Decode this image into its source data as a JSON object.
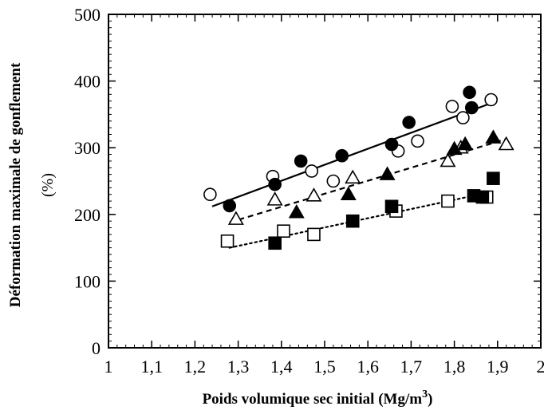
{
  "chart_data": {
    "type": "scatter",
    "title": "",
    "xlabel": "Poids volumique sec initial (Mg/m",
    "xlabel_sup": "3",
    "xlabel_close": ")",
    "ylabel": "Déformation maximale de gonflement",
    "ylabel_unit": "(%)",
    "xlim": [
      1,
      2
    ],
    "ylim": [
      0,
      500
    ],
    "x_ticks": [
      1,
      1.1,
      1.2,
      1.3,
      1.4,
      1.5,
      1.6,
      1.7,
      1.8,
      1.9,
      2
    ],
    "x_tick_labels": [
      "1",
      "1,1",
      "1,2",
      "1,3",
      "1,4",
      "1,5",
      "1,6",
      "1,7",
      "1,8",
      "1,9",
      "2"
    ],
    "y_ticks": [
      0,
      100,
      200,
      300,
      400,
      500
    ],
    "y_tick_labels": [
      "0",
      "100",
      "200",
      "300",
      "400",
      "500"
    ],
    "grid": false,
    "legend": "none",
    "series": [
      {
        "marker": "open-circle",
        "points": [
          [
            1.235,
            230
          ],
          [
            1.38,
            257
          ],
          [
            1.47,
            265
          ],
          [
            1.52,
            250
          ],
          [
            1.67,
            295
          ],
          [
            1.715,
            310
          ],
          [
            1.795,
            362
          ],
          [
            1.82,
            345
          ],
          [
            1.885,
            372
          ]
        ]
      },
      {
        "marker": "filled-circle",
        "points": [
          [
            1.28,
            213
          ],
          [
            1.385,
            245
          ],
          [
            1.445,
            280
          ],
          [
            1.54,
            288
          ],
          [
            1.655,
            305
          ],
          [
            1.695,
            338
          ],
          [
            1.835,
            383
          ],
          [
            1.84,
            360
          ]
        ]
      },
      {
        "marker": "open-triangle",
        "points": [
          [
            1.295,
            193
          ],
          [
            1.385,
            222
          ],
          [
            1.475,
            228
          ],
          [
            1.565,
            255
          ],
          [
            1.785,
            280
          ],
          [
            1.815,
            300
          ],
          [
            1.92,
            305
          ]
        ]
      },
      {
        "marker": "filled-triangle",
        "points": [
          [
            1.435,
            203
          ],
          [
            1.555,
            230
          ],
          [
            1.645,
            260
          ],
          [
            1.8,
            298
          ],
          [
            1.825,
            305
          ],
          [
            1.89,
            315
          ]
        ]
      },
      {
        "marker": "open-square",
        "points": [
          [
            1.275,
            160
          ],
          [
            1.405,
            175
          ],
          [
            1.475,
            170
          ],
          [
            1.665,
            205
          ],
          [
            1.785,
            220
          ],
          [
            1.875,
            226
          ]
        ]
      },
      {
        "marker": "filled-square",
        "points": [
          [
            1.385,
            157
          ],
          [
            1.565,
            190
          ],
          [
            1.655,
            212
          ],
          [
            1.845,
            228
          ],
          [
            1.865,
            226
          ],
          [
            1.89,
            254
          ]
        ]
      }
    ],
    "fit_lines": [
      {
        "style": "solid",
        "from": [
          1.24,
          212
        ],
        "to": [
          1.89,
          368
        ]
      },
      {
        "style": "dashed",
        "from": [
          1.28,
          188
        ],
        "to": [
          1.92,
          313
        ]
      },
      {
        "style": "dotted",
        "from": [
          1.28,
          150
        ],
        "to": [
          1.88,
          233
        ]
      }
    ]
  }
}
